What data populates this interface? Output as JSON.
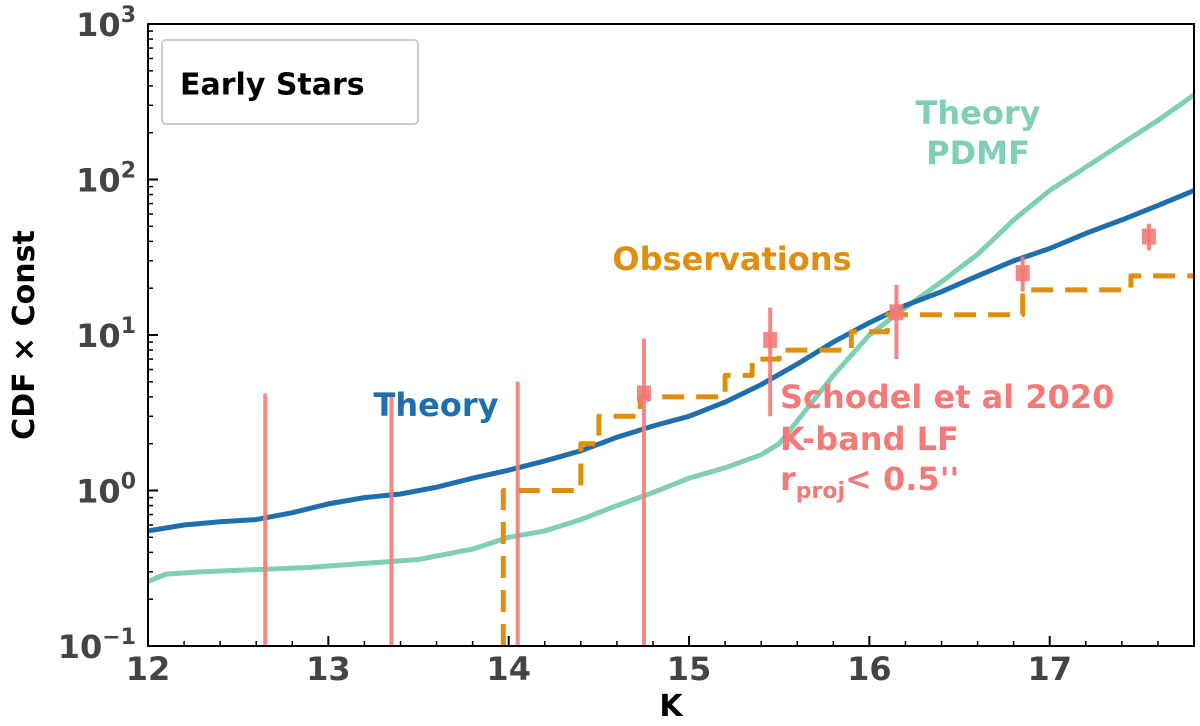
{
  "chart_data": {
    "type": "line",
    "xlabel": "K",
    "ylabel": "CDF × Const",
    "xlim": [
      12,
      17.8
    ],
    "ylim": [
      0.1,
      1000
    ],
    "yscale": "log",
    "grid": false,
    "x_ticks": [
      12,
      13,
      14,
      15,
      16,
      17
    ],
    "y_ticks": [
      {
        "value": 0.1,
        "base": "10",
        "exp": "−1"
      },
      {
        "value": 1,
        "base": "10",
        "exp": "0"
      },
      {
        "value": 10,
        "base": "10",
        "exp": "1"
      },
      {
        "value": 100,
        "base": "10",
        "exp": "2"
      },
      {
        "value": 1000,
        "base": "10",
        "exp": "3"
      }
    ],
    "legend": {
      "label": "Early Stars",
      "position": "top-left"
    },
    "series": [
      {
        "name": "Theory",
        "label_lines": [
          "Theory"
        ],
        "color": "#1f6fae",
        "style": "solid",
        "x": [
          12.0,
          12.2,
          12.4,
          12.6,
          12.8,
          13.0,
          13.2,
          13.4,
          13.6,
          13.8,
          14.0,
          14.2,
          14.4,
          14.6,
          14.8,
          15.0,
          15.2,
          15.4,
          15.6,
          15.8,
          16.0,
          16.2,
          16.4,
          16.6,
          16.8,
          17.0,
          17.2,
          17.4,
          17.6,
          17.8
        ],
        "y": [
          0.55,
          0.6,
          0.63,
          0.65,
          0.72,
          0.82,
          0.9,
          0.95,
          1.05,
          1.2,
          1.35,
          1.55,
          1.8,
          2.2,
          2.6,
          3.0,
          3.7,
          4.8,
          6.5,
          9.0,
          12.0,
          15.5,
          19.0,
          24.0,
          30.0,
          36.0,
          45.0,
          55.0,
          68.0,
          85.0
        ]
      },
      {
        "name": "Theory PDMF",
        "label_lines": [
          "Theory",
          "PDMF"
        ],
        "color": "#7ecfb4",
        "style": "solid",
        "x": [
          12.0,
          12.1,
          12.3,
          12.6,
          12.9,
          13.2,
          13.5,
          13.8,
          14.0,
          14.2,
          14.4,
          14.6,
          14.8,
          15.0,
          15.2,
          15.4,
          15.5,
          15.6,
          15.8,
          16.0,
          16.2,
          16.4,
          16.6,
          16.8,
          17.0,
          17.2,
          17.4,
          17.6,
          17.8
        ],
        "y": [
          0.26,
          0.29,
          0.3,
          0.31,
          0.32,
          0.34,
          0.36,
          0.42,
          0.5,
          0.55,
          0.65,
          0.8,
          0.97,
          1.2,
          1.4,
          1.7,
          2.0,
          2.8,
          5.5,
          10.0,
          15.0,
          22.0,
          33.0,
          55.0,
          85.0,
          120.0,
          170.0,
          240.0,
          350.0
        ]
      },
      {
        "name": "Observations",
        "label_lines": [
          "Observations"
        ],
        "color": "#e08e0b",
        "style": "dashed-step",
        "x": [
          13.97,
          13.97,
          14.4,
          14.4,
          14.5,
          14.5,
          14.73,
          14.73,
          15.2,
          15.2,
          15.35,
          15.35,
          15.5,
          15.5,
          15.9,
          15.9,
          16.1,
          16.1,
          16.85,
          16.85,
          17.45,
          17.45,
          17.8
        ],
        "y": [
          0.1,
          1.0,
          1.0,
          2.0,
          2.0,
          3.0,
          3.0,
          4.0,
          4.0,
          5.5,
          5.5,
          7.0,
          7.0,
          8.0,
          8.0,
          10.5,
          10.5,
          13.5,
          13.5,
          19.5,
          19.5,
          24.0,
          24.0
        ]
      }
    ],
    "errorbars": {
      "name": "Schodel et al 2020 K-band LF",
      "label_lines": [
        "Schodel et al 2020",
        "K-band LF"
      ],
      "note_main": "r",
      "note_sub": "proj",
      "note_rest": "< 0.5''",
      "color": "#f47a7a",
      "points": [
        {
          "x": 12.65,
          "y": 0.1,
          "ylo": 0.1,
          "yhi": 4.2
        },
        {
          "x": 13.35,
          "y": 0.1,
          "ylo": 0.1,
          "yhi": 4.2
        },
        {
          "x": 14.05,
          "y": 0.1,
          "ylo": 0.1,
          "yhi": 5.0
        },
        {
          "x": 14.75,
          "y": 4.2,
          "ylo": 0.1,
          "yhi": 9.5
        },
        {
          "x": 15.45,
          "y": 9.3,
          "ylo": 3.0,
          "yhi": 15.0
        },
        {
          "x": 16.15,
          "y": 14.0,
          "ylo": 7.0,
          "yhi": 21.0
        },
        {
          "x": 16.85,
          "y": 25.0,
          "ylo": 19.0,
          "yhi": 32.0
        },
        {
          "x": 17.55,
          "y": 43.0,
          "ylo": 35.0,
          "yhi": 52.0
        }
      ]
    }
  }
}
